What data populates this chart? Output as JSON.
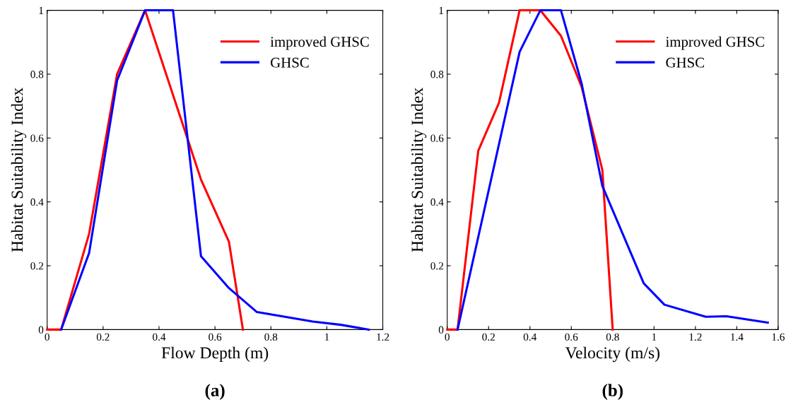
{
  "chart_data": [
    {
      "type": "line",
      "xlabel": "Flow Depth (m)",
      "ylabel": "Habitat Suitability Index",
      "xlim": [
        0,
        1.2
      ],
      "ylim": [
        0,
        1
      ],
      "xticks": [
        0,
        0.2,
        0.4,
        0.6,
        0.8,
        1,
        1.2
      ],
      "yticks": [
        0,
        0.2,
        0.4,
        0.6,
        0.8,
        1
      ],
      "grid": false,
      "legend": "top right",
      "marker": "none",
      "line_style": "solid",
      "annotations": [
        "(a)"
      ],
      "series": [
        {
          "name": "improved GHSC",
          "color": "#ff0000",
          "x": [
            0,
            0.05,
            0.15,
            0.25,
            0.35,
            0.55,
            0.65,
            0.7
          ],
          "values": [
            0,
            0,
            0.3,
            0.8,
            1,
            0.47,
            0.275,
            0
          ]
        },
        {
          "name": "GHSC",
          "color": "#0000ff",
          "x": [
            0.05,
            0.15,
            0.25,
            0.35,
            0.45,
            0.55,
            0.65,
            0.75,
            0.95,
            1.05,
            1.15
          ],
          "values": [
            0,
            0.24,
            0.78,
            1,
            1,
            0.23,
            0.13,
            0.055,
            0.025,
            0.015,
            0
          ]
        }
      ]
    },
    {
      "type": "line",
      "xlabel": "Velocity (m/s)",
      "ylabel": "Habitat Suitability Index",
      "xlim": [
        0,
        1.6
      ],
      "ylim": [
        0,
        1
      ],
      "xticks": [
        0,
        0.2,
        0.4,
        0.6,
        0.8,
        1,
        1.2,
        1.4,
        1.6
      ],
      "yticks": [
        0,
        0.2,
        0.4,
        0.6,
        0.8,
        1
      ],
      "grid": false,
      "legend": "top right",
      "marker": "none",
      "line_style": "solid",
      "annotations": [
        "(b)"
      ],
      "series": [
        {
          "name": "improved GHSC",
          "color": "#ff0000",
          "x": [
            0,
            0.05,
            0.15,
            0.25,
            0.35,
            0.45,
            0.55,
            0.65,
            0.75,
            0.8
          ],
          "values": [
            0,
            0,
            0.56,
            0.71,
            1,
            1,
            0.92,
            0.76,
            0.5,
            0
          ]
        },
        {
          "name": "GHSC",
          "color": "#0000ff",
          "x": [
            0.05,
            0.35,
            0.45,
            0.55,
            0.65,
            0.75,
            0.95,
            1.05,
            1.25,
            1.35,
            1.55
          ],
          "values": [
            0,
            0.87,
            1,
            1,
            0.77,
            0.45,
            0.145,
            0.078,
            0.04,
            0.042,
            0.022
          ]
        }
      ]
    }
  ]
}
